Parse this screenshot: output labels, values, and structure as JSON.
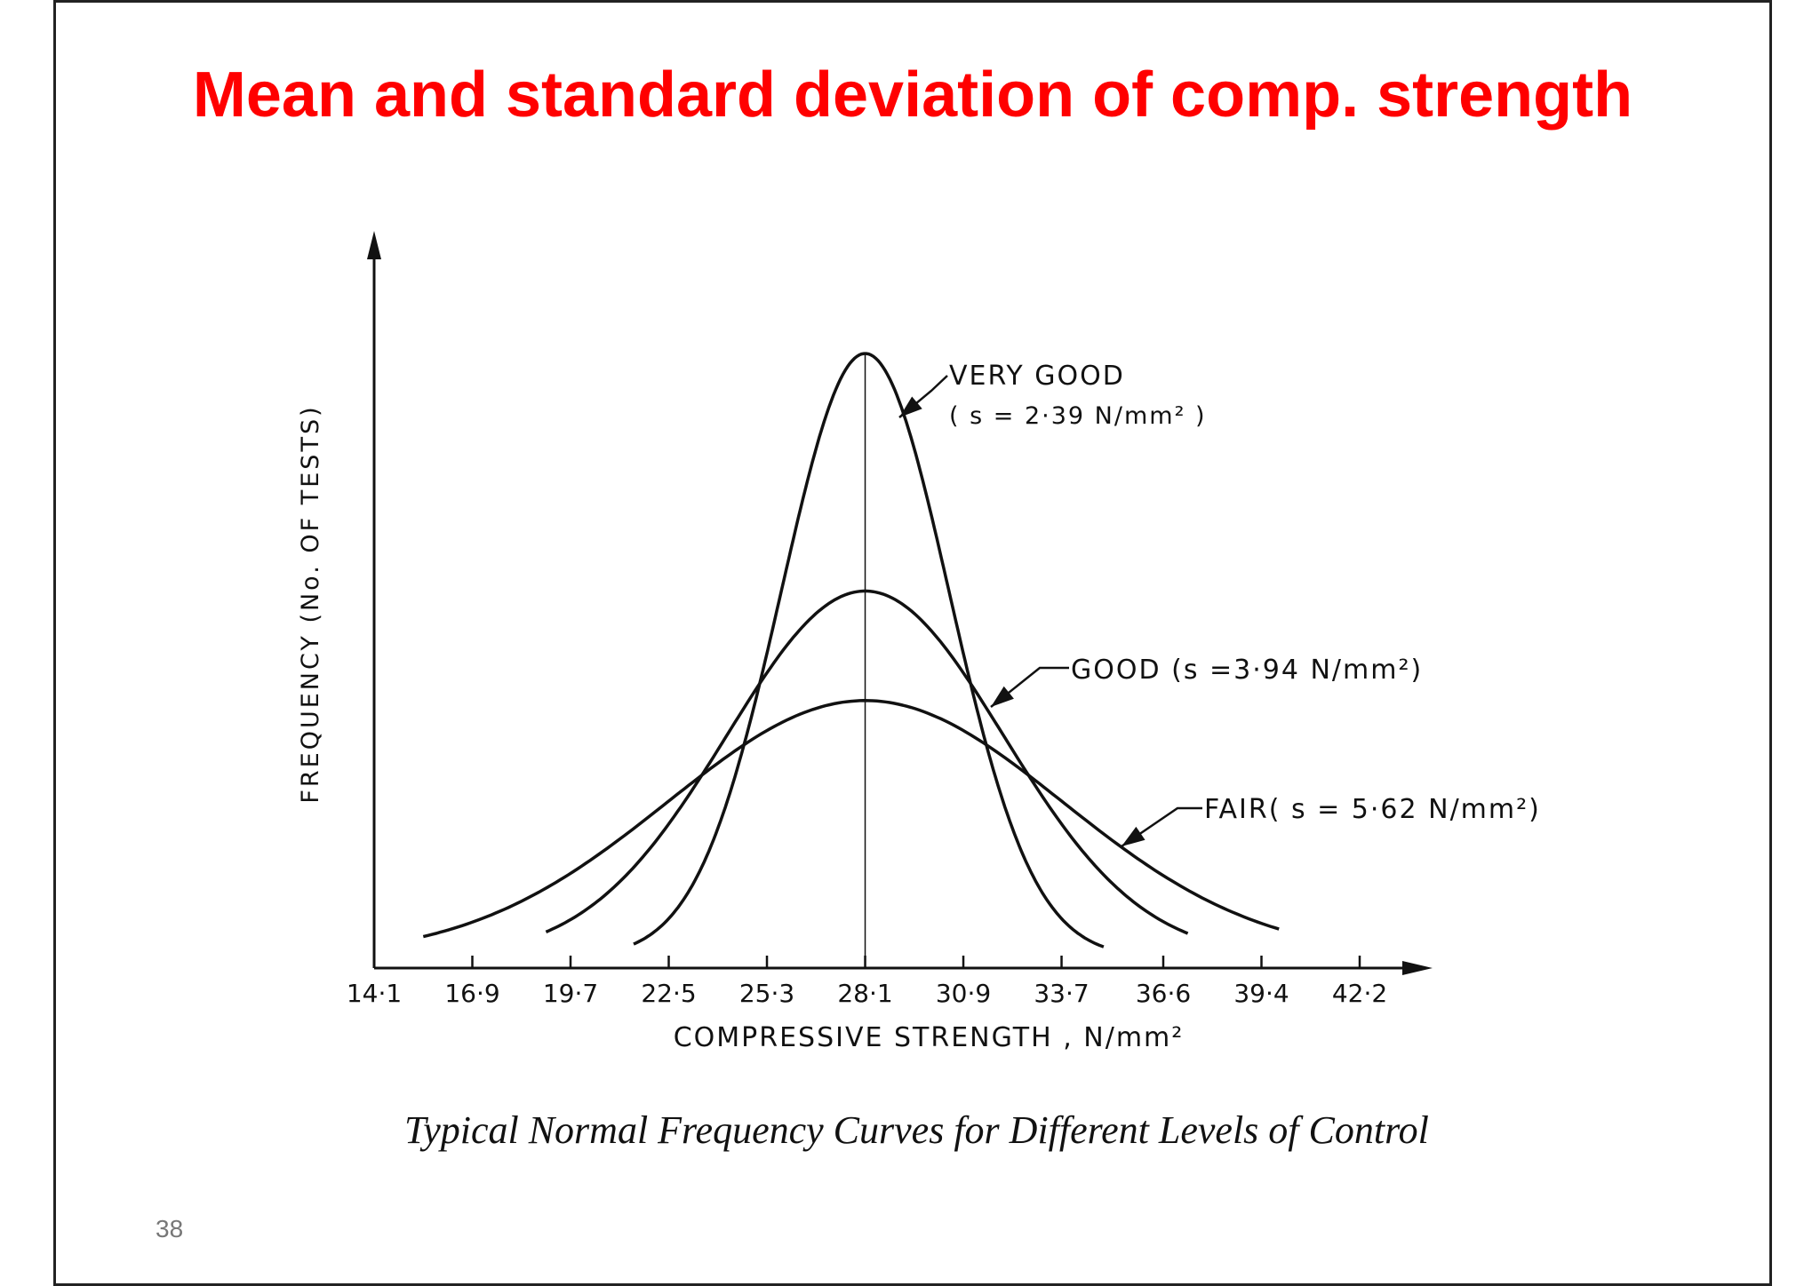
{
  "slide": {
    "title": "Mean and standard deviation of comp. strength",
    "caption": "Typical Normal Frequency Curves   for Different Levels of Control",
    "page_number": "38"
  },
  "colors": {
    "title": "#ff0000",
    "ink": "#111111",
    "page_number": "#777777"
  },
  "chart_data": {
    "type": "line",
    "xlabel": "COMPRESSIVE STRENGTH , N/mm²",
    "ylabel": "FREQUENCY (No. OF TESTS)",
    "xticks": [
      "14·1",
      "16·9",
      "19·7",
      "22·5",
      "25·3",
      "28·1",
      "30·9",
      "33·7",
      "36·6",
      "39·4",
      "42·2"
    ],
    "xlim": [
      14.1,
      42.2
    ],
    "mean": 28.1,
    "series": [
      {
        "name": "VERY GOOD",
        "label_value": "( s = 2·39 N/mm² )",
        "sd": 2.39,
        "x_range": [
          21.5,
          34.9
        ]
      },
      {
        "name": "GOOD",
        "label_value": "(s =3·94 N/mm²)",
        "sd": 3.94,
        "x_range": [
          19.0,
          37.3
        ]
      },
      {
        "name": "FAIR",
        "label_value": "( s = 5·62 N/mm²)",
        "sd": 5.62,
        "x_range": [
          15.5,
          39.9
        ]
      }
    ]
  }
}
